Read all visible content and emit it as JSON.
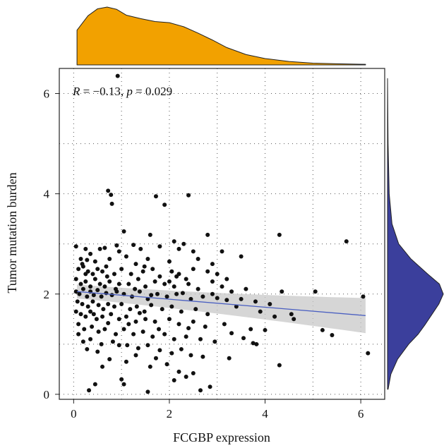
{
  "chart_data": {
    "type": "scatter",
    "title": "",
    "xlabel": "FCGBP expression",
    "ylabel": "Tumor mutation burden",
    "xlim": [
      -0.3,
      6.5
    ],
    "ylim": [
      -0.1,
      6.5
    ],
    "xticks": [
      0,
      2,
      4,
      6
    ],
    "yticks": [
      0,
      2,
      4,
      6
    ],
    "grid": true,
    "grid_style": "dotted",
    "annotation": {
      "r_label": "R",
      "r_value": " = −0.13, ",
      "p_label": "p",
      "p_value": " = 0.029"
    },
    "colors": {
      "points": "#111111",
      "regression_line": "#4a5fc1",
      "confidence_band": "#c8c8c8",
      "top_density": "#f2a100",
      "right_density": "#3b3f9c"
    },
    "regression": {
      "x": [
        0.07,
        6.1
      ],
      "y": [
        2.05,
        1.57
      ],
      "band_halfwidth_at_ends": [
        0.14,
        0.35
      ]
    },
    "marginal_density_x": {
      "x": [
        0.07,
        0.3,
        0.5,
        0.7,
        0.9,
        1.1,
        1.4,
        1.7,
        2.0,
        2.3,
        2.6,
        2.9,
        3.2,
        3.6,
        4.0,
        4.5,
        5.0,
        5.5,
        6.1
      ],
      "density": [
        0.6,
        0.85,
        0.97,
        1.0,
        0.96,
        0.86,
        0.8,
        0.75,
        0.73,
        0.66,
        0.55,
        0.43,
        0.3,
        0.18,
        0.11,
        0.06,
        0.03,
        0.02,
        0.01
      ]
    },
    "marginal_density_y": {
      "y": [
        0.1,
        0.4,
        0.7,
        1.0,
        1.2,
        1.4,
        1.6,
        1.8,
        2.0,
        2.2,
        2.4,
        2.7,
        3.0,
        3.4,
        4.0,
        5.0,
        6.3
      ],
      "density": [
        0.01,
        0.06,
        0.18,
        0.38,
        0.55,
        0.68,
        0.8,
        0.92,
        1.0,
        0.93,
        0.72,
        0.42,
        0.2,
        0.08,
        0.03,
        0.01,
        0.0
      ]
    },
    "points": [
      [
        0.92,
        6.35
      ],
      [
        0.72,
        4.06
      ],
      [
        0.78,
        3.98
      ],
      [
        0.8,
        3.8
      ],
      [
        1.72,
        3.95
      ],
      [
        2.4,
        3.97
      ],
      [
        1.9,
        3.78
      ],
      [
        1.05,
        3.25
      ],
      [
        2.8,
        3.18
      ],
      [
        4.3,
        3.18
      ],
      [
        5.7,
        3.05
      ],
      [
        1.6,
        3.18
      ],
      [
        2.1,
        3.05
      ],
      [
        2.3,
        3.0
      ],
      [
        0.05,
        2.95
      ],
      [
        0.25,
        2.9
      ],
      [
        0.55,
        2.9
      ],
      [
        0.65,
        2.92
      ],
      [
        0.9,
        2.97
      ],
      [
        0.95,
        2.85
      ],
      [
        1.25,
        2.98
      ],
      [
        1.4,
        2.9
      ],
      [
        1.8,
        2.95
      ],
      [
        2.2,
        2.9
      ],
      [
        2.5,
        2.85
      ],
      [
        3.1,
        2.85
      ],
      [
        3.5,
        2.75
      ],
      [
        0.15,
        2.7
      ],
      [
        0.35,
        2.8
      ],
      [
        0.45,
        2.65
      ],
      [
        0.75,
        2.7
      ],
      [
        1.1,
        2.75
      ],
      [
        1.3,
        2.6
      ],
      [
        1.55,
        2.7
      ],
      [
        2.0,
        2.65
      ],
      [
        2.6,
        2.7
      ],
      [
        2.9,
        2.6
      ],
      [
        0.1,
        2.5
      ],
      [
        0.2,
        2.55
      ],
      [
        0.3,
        2.45
      ],
      [
        0.4,
        2.4
      ],
      [
        0.5,
        2.5
      ],
      [
        0.6,
        2.45
      ],
      [
        0.7,
        2.35
      ],
      [
        0.85,
        2.4
      ],
      [
        1.0,
        2.5
      ],
      [
        1.2,
        2.4
      ],
      [
        1.45,
        2.45
      ],
      [
        1.65,
        2.5
      ],
      [
        1.8,
        2.35
      ],
      [
        2.05,
        2.45
      ],
      [
        2.2,
        2.4
      ],
      [
        2.35,
        2.3
      ],
      [
        2.8,
        2.45
      ],
      [
        3.0,
        2.4
      ],
      [
        2.0,
        2.25
      ],
      [
        0.05,
        2.3
      ],
      [
        0.15,
        2.2
      ],
      [
        0.25,
        2.25
      ],
      [
        0.35,
        2.15
      ],
      [
        0.45,
        2.3
      ],
      [
        0.55,
        2.2
      ],
      [
        0.65,
        2.15
      ],
      [
        0.75,
        2.25
      ],
      [
        0.95,
        2.2
      ],
      [
        1.15,
        2.2
      ],
      [
        1.35,
        2.3
      ],
      [
        1.5,
        2.15
      ],
      [
        1.7,
        2.25
      ],
      [
        1.9,
        2.2
      ],
      [
        2.1,
        2.15
      ],
      [
        2.4,
        2.2
      ],
      [
        2.6,
        2.1
      ],
      [
        2.9,
        2.25
      ],
      [
        3.3,
        2.05
      ],
      [
        3.6,
        2.1
      ],
      [
        4.35,
        2.05
      ],
      [
        5.05,
        2.05
      ],
      [
        0.05,
        2.05
      ],
      [
        0.12,
        2.0
      ],
      [
        0.2,
        2.1
      ],
      [
        0.28,
        1.95
      ],
      [
        0.35,
        2.05
      ],
      [
        0.42,
        1.98
      ],
      [
        0.5,
        2.08
      ],
      [
        0.58,
        1.95
      ],
      [
        0.68,
        2.02
      ],
      [
        0.8,
        1.98
      ],
      [
        0.9,
        2.05
      ],
      [
        1.05,
        2.0
      ],
      [
        1.22,
        1.95
      ],
      [
        1.38,
        2.05
      ],
      [
        1.55,
        1.9
      ],
      [
        1.75,
        2.0
      ],
      [
        1.95,
        1.95
      ],
      [
        2.15,
        2.0
      ],
      [
        2.45,
        1.9
      ],
      [
        2.7,
        1.95
      ],
      [
        3.0,
        1.92
      ],
      [
        3.2,
        1.88
      ],
      [
        3.5,
        1.9
      ],
      [
        3.8,
        1.85
      ],
      [
        4.1,
        1.8
      ],
      [
        6.05,
        1.95
      ],
      [
        0.08,
        1.85
      ],
      [
        0.18,
        1.8
      ],
      [
        0.3,
        1.75
      ],
      [
        0.4,
        1.85
      ],
      [
        0.52,
        1.78
      ],
      [
        0.62,
        1.7
      ],
      [
        0.72,
        1.8
      ],
      [
        0.85,
        1.75
      ],
      [
        1.0,
        1.8
      ],
      [
        1.18,
        1.7
      ],
      [
        1.32,
        1.75
      ],
      [
        1.48,
        1.65
      ],
      [
        1.62,
        1.78
      ],
      [
        1.85,
        1.7
      ],
      [
        2.05,
        1.75
      ],
      [
        2.25,
        1.65
      ],
      [
        2.55,
        1.7
      ],
      [
        2.8,
        1.6
      ],
      [
        3.4,
        1.75
      ],
      [
        3.9,
        1.65
      ],
      [
        4.2,
        1.55
      ],
      [
        4.6,
        1.5
      ],
      [
        0.05,
        1.65
      ],
      [
        0.15,
        1.6
      ],
      [
        0.25,
        1.55
      ],
      [
        0.35,
        1.65
      ],
      [
        0.48,
        1.5
      ],
      [
        0.6,
        1.55
      ],
      [
        0.78,
        1.6
      ],
      [
        0.95,
        1.5
      ],
      [
        1.1,
        1.55
      ],
      [
        1.3,
        1.45
      ],
      [
        1.5,
        1.5
      ],
      [
        1.7,
        1.45
      ],
      [
        2.0,
        1.5
      ],
      [
        2.2,
        1.4
      ],
      [
        2.5,
        1.45
      ],
      [
        2.75,
        1.35
      ],
      [
        3.15,
        1.4
      ],
      [
        3.7,
        1.3
      ],
      [
        4.0,
        1.28
      ],
      [
        5.2,
        1.28
      ],
      [
        5.4,
        1.18
      ],
      [
        4.55,
        1.6
      ],
      [
        0.1,
        1.4
      ],
      [
        0.22,
        1.3
      ],
      [
        0.38,
        1.35
      ],
      [
        0.52,
        1.25
      ],
      [
        0.65,
        1.3
      ],
      [
        0.88,
        1.2
      ],
      [
        1.05,
        1.3
      ],
      [
        1.25,
        1.2
      ],
      [
        1.45,
        1.25
      ],
      [
        1.65,
        1.15
      ],
      [
        1.9,
        1.2
      ],
      [
        2.1,
        1.1
      ],
      [
        2.35,
        1.15
      ],
      [
        2.65,
        1.1
      ],
      [
        2.95,
        1.05
      ],
      [
        3.3,
        1.22
      ],
      [
        3.55,
        1.12
      ],
      [
        3.75,
        1.02
      ],
      [
        3.82,
        1.0
      ],
      [
        0.1,
        1.2
      ],
      [
        0.35,
        1.1
      ],
      [
        0.58,
        1.0
      ],
      [
        0.82,
        1.05
      ],
      [
        1.12,
        0.98
      ],
      [
        1.35,
        0.92
      ],
      [
        1.55,
        0.98
      ],
      [
        1.8,
        0.88
      ],
      [
        2.05,
        0.82
      ],
      [
        2.25,
        0.9
      ],
      [
        2.45,
        0.78
      ],
      [
        2.7,
        0.75
      ],
      [
        3.25,
        0.72
      ],
      [
        4.3,
        0.58
      ],
      [
        6.15,
        0.82
      ],
      [
        0.28,
        0.9
      ],
      [
        0.5,
        0.85
      ],
      [
        0.75,
        0.7
      ],
      [
        1.1,
        0.65
      ],
      [
        1.3,
        0.78
      ],
      [
        1.6,
        0.55
      ],
      [
        1.95,
        0.6
      ],
      [
        2.2,
        0.45
      ],
      [
        2.5,
        0.42
      ],
      [
        0.6,
        0.55
      ],
      [
        1.0,
        0.3
      ],
      [
        1.05,
        0.2
      ],
      [
        2.1,
        0.28
      ],
      [
        2.35,
        0.35
      ],
      [
        2.85,
        0.15
      ],
      [
        0.45,
        0.2
      ],
      [
        0.32,
        0.08
      ],
      [
        1.55,
        0.05
      ],
      [
        2.65,
        0.08
      ],
      [
        0.18,
        2.6
      ],
      [
        0.28,
        2.68
      ],
      [
        1.48,
        2.55
      ],
      [
        2.5,
        2.5
      ],
      [
        0.88,
        2.1
      ],
      [
        1.28,
        2.1
      ],
      [
        1.62,
        1.98
      ],
      [
        2.28,
        2.02
      ],
      [
        2.9,
        2.0
      ],
      [
        3.1,
        2.15
      ],
      [
        0.42,
        1.6
      ],
      [
        0.72,
        1.42
      ],
      [
        1.15,
        1.4
      ],
      [
        1.38,
        1.62
      ],
      [
        1.78,
        1.3
      ],
      [
        2.4,
        1.32
      ],
      [
        0.2,
        1.05
      ],
      [
        0.95,
        0.98
      ],
      [
        1.72,
        0.72
      ],
      [
        0.25,
        2.4
      ],
      [
        0.68,
        2.55
      ],
      [
        2.15,
        2.35
      ],
      [
        3.2,
        2.3
      ]
    ]
  }
}
